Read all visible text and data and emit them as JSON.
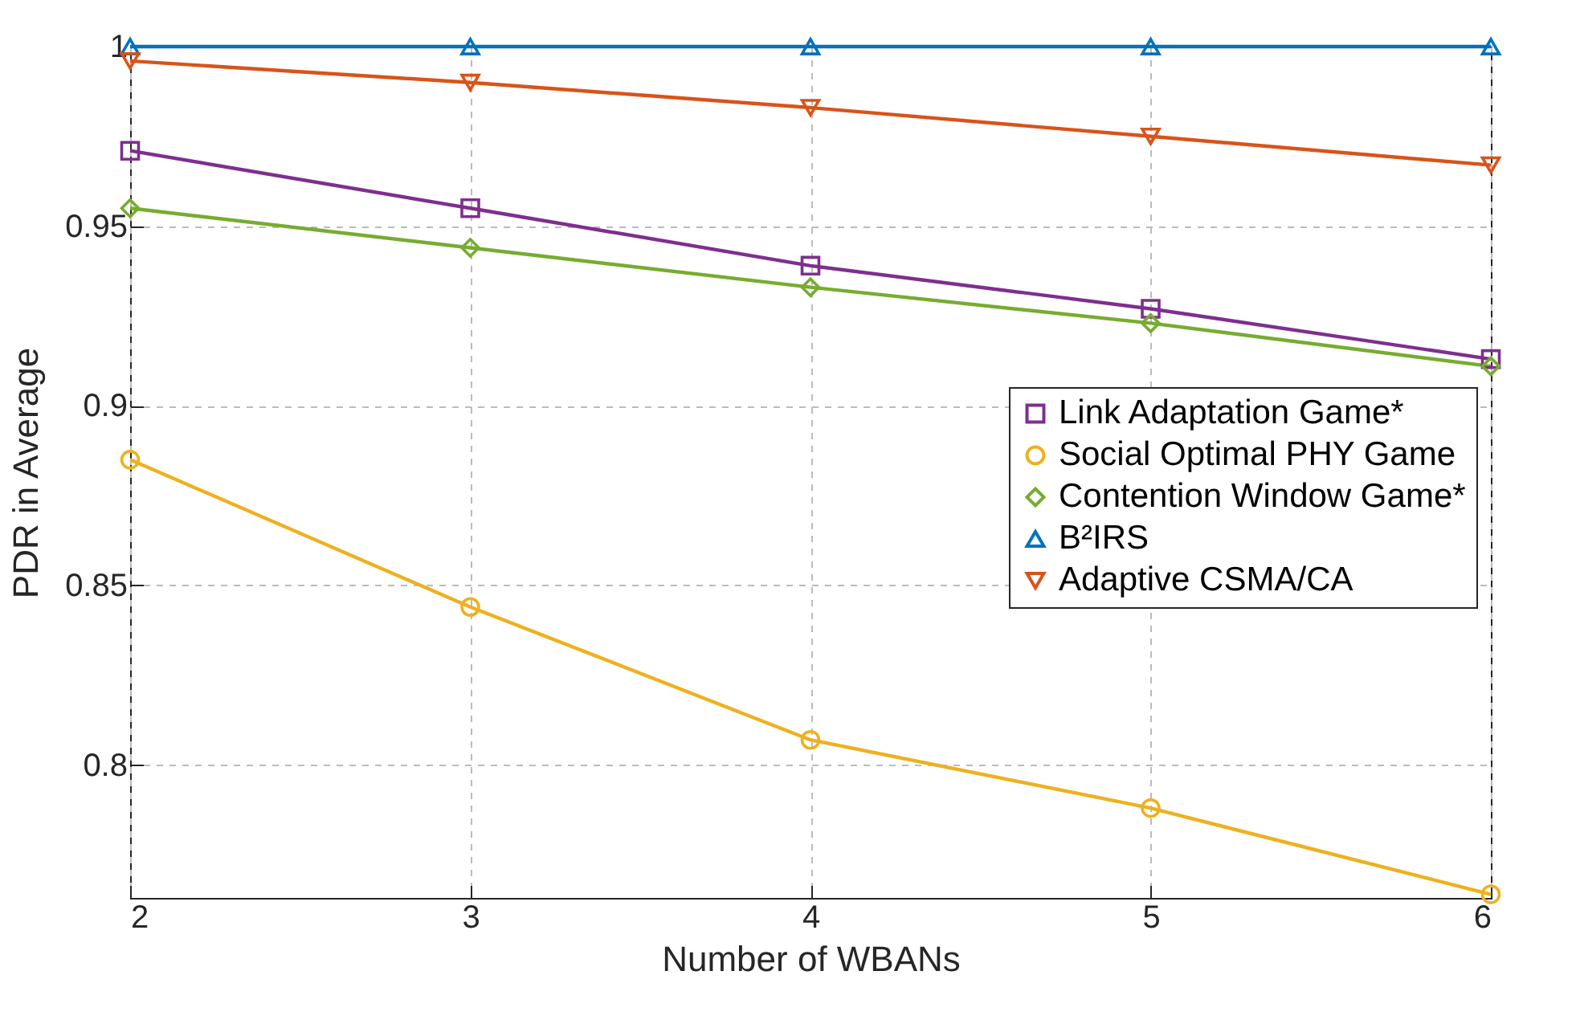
{
  "chart_data": {
    "type": "line",
    "xlabel": "Number of WBANs",
    "ylabel": "PDR in Average",
    "x": [
      2,
      3,
      4,
      5,
      6
    ],
    "xlim": [
      2,
      6
    ],
    "xticks": [
      2,
      3,
      4,
      5,
      6
    ],
    "ylim": [
      0.763,
      1
    ],
    "yticks": [
      0.8,
      0.85,
      0.9,
      0.95,
      1
    ],
    "grid": true,
    "legend": "right",
    "line_style": "solid",
    "series": [
      {
        "name": "Link Adaptation Game*",
        "color": "#7e2f8e",
        "marker": "square",
        "values": [
          0.971,
          0.955,
          0.939,
          0.927,
          0.913
        ]
      },
      {
        "name": "Social Optimal PHY Game",
        "color": "#edb120",
        "marker": "circle",
        "values": [
          0.885,
          0.844,
          0.807,
          0.788,
          0.764
        ]
      },
      {
        "name": "Contention Window Game*",
        "color": "#77ac30",
        "marker": "diamond",
        "values": [
          0.955,
          0.944,
          0.933,
          0.923,
          0.911
        ]
      },
      {
        "name": "B²IRS",
        "color": "#0072bd",
        "marker": "triangle",
        "values": [
          1,
          1,
          1,
          1,
          1
        ]
      },
      {
        "name": "Adaptive CSMA/CA",
        "color": "#d95319",
        "marker": "triangle-down",
        "values": [
          0.996,
          0.99,
          0.983,
          0.975,
          0.967
        ]
      }
    ]
  }
}
